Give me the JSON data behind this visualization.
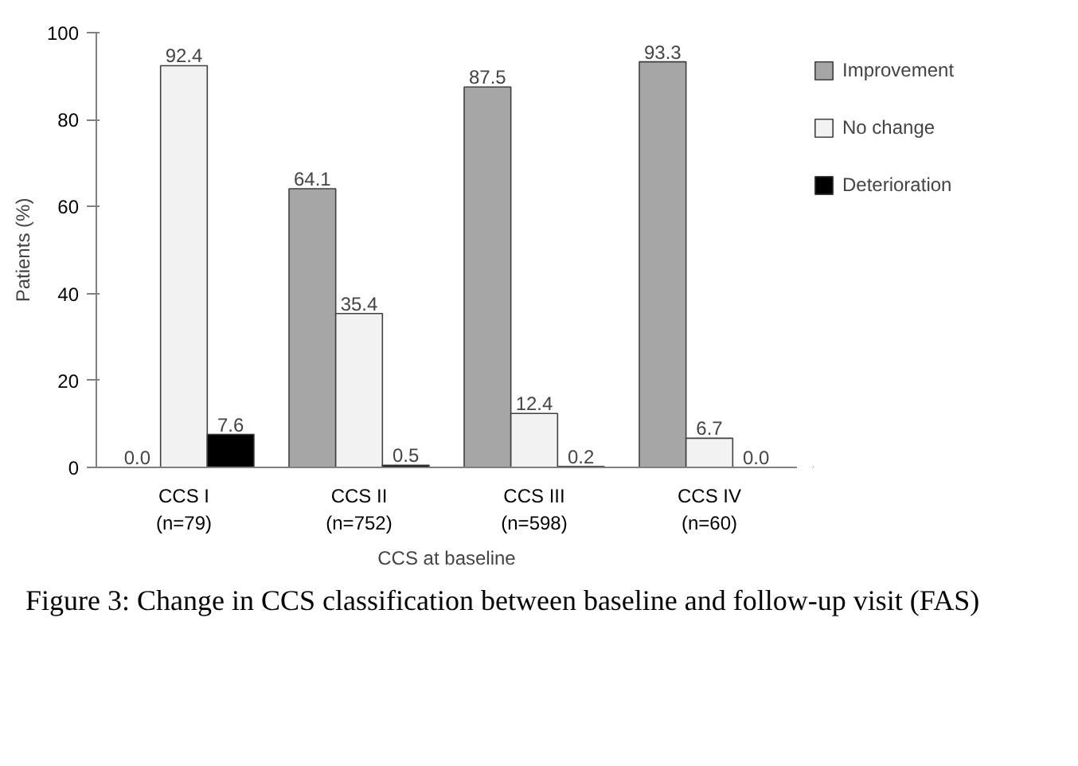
{
  "chart_data": {
    "type": "bar",
    "xlabel": "CCS at baseline",
    "ylabel": "Patients (%)",
    "categories": [
      "CCS I\n(n=79)",
      "CCS II\n(n=752)",
      "CCS III\n(n=598)",
      "CCS IV\n(n=60)"
    ],
    "series": [
      {
        "name": "Improvement",
        "color": "#a6a6a6",
        "values": [
          0.0,
          64.1,
          87.5,
          93.3
        ],
        "value_labels": [
          "0.0",
          "64.1",
          "87.5",
          "93.3"
        ]
      },
      {
        "name": "No change",
        "color": "#f2f2f2",
        "values": [
          92.4,
          35.4,
          12.4,
          6.7
        ],
        "value_labels": [
          "92.4",
          "35.4",
          "12.4",
          "6.7"
        ]
      },
      {
        "name": "Deterioration",
        "color": "#000000",
        "values": [
          7.6,
          0.5,
          0.2,
          0.0
        ],
        "value_labels": [
          "7.6",
          "0.5",
          "0.2",
          "0.0"
        ]
      }
    ],
    "ylim": [
      0,
      100
    ],
    "yticks": [
      0,
      20,
      40,
      60,
      80,
      100
    ],
    "grid": false,
    "legend": "right",
    "annotations": [
      "Figure 3: Change in CCS classification between baseline and follow-up visit (FAS)"
    ]
  }
}
